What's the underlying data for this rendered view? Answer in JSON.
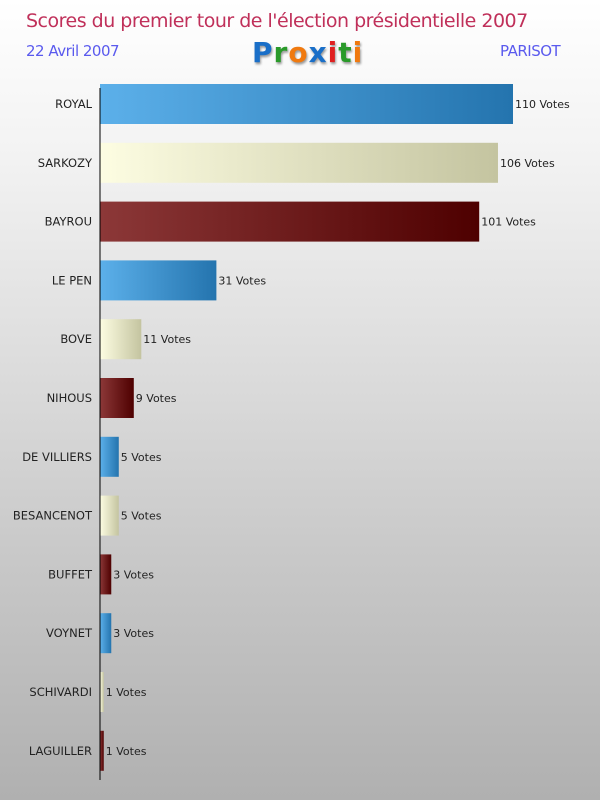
{
  "header": {
    "title": "Scores du premier tour de l'élection présidentielle 2007",
    "date": "22 Avril 2007",
    "commune": "PARISOT",
    "logo": "Proxiti"
  },
  "logo_colors": [
    "#1a6fc8",
    "#2a9a2a",
    "#f07a10",
    "#1a6fc8",
    "#e02020",
    "#2a9a2a",
    "#f07a10"
  ],
  "chart_data": {
    "type": "bar",
    "orientation": "horizontal",
    "title": "Scores du premier tour de l'élection présidentielle 2007",
    "categories": [
      "ROYAL",
      "SARKOZY",
      "BAYROU",
      "LE PEN",
      "BOVE",
      "NIHOUS",
      "DE VILLIERS",
      "BESANCENOT",
      "BUFFET",
      "VOYNET",
      "SCHIVARDI",
      "LAGUILLER"
    ],
    "values": [
      110,
      106,
      101,
      31,
      11,
      9,
      5,
      5,
      3,
      3,
      1,
      1
    ],
    "value_suffix": " Votes",
    "xlim": [
      0,
      110
    ],
    "palette": [
      [
        "#5cb0ea",
        "#2474ae"
      ],
      [
        "#fdfde2",
        "#c4c4a0"
      ],
      [
        "#8c3838",
        "#4e0000"
      ]
    ]
  }
}
